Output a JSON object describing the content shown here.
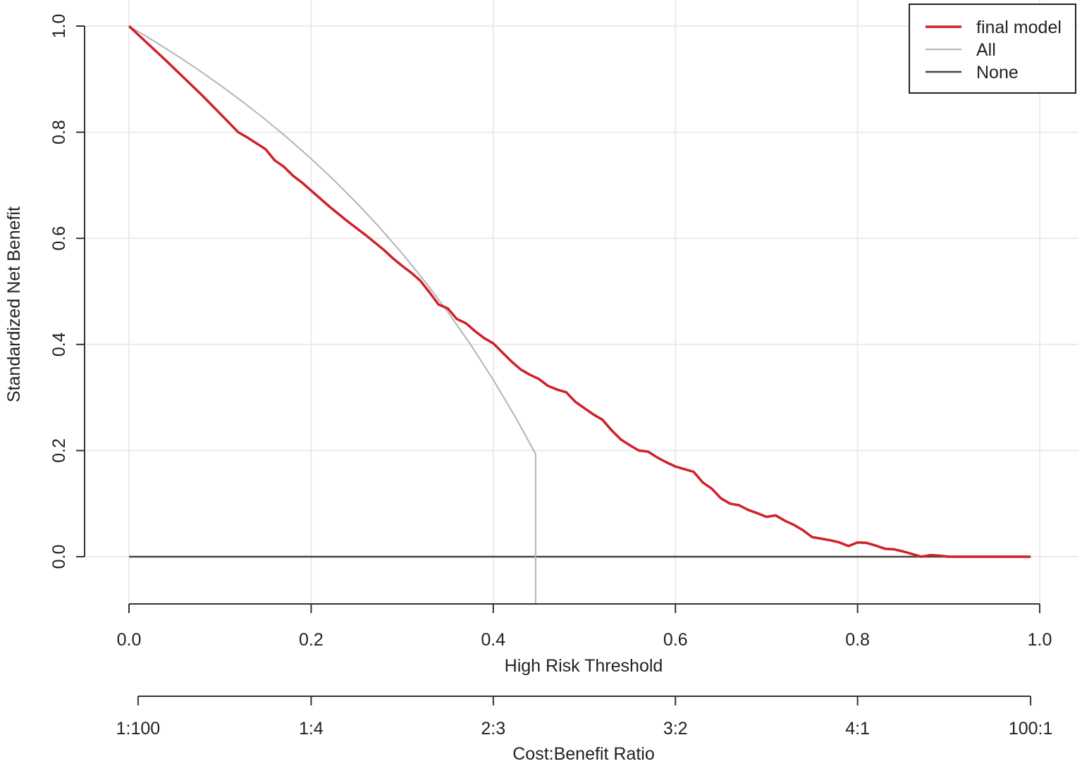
{
  "chart_data": {
    "type": "line",
    "title": "",
    "xlabel": "High Risk Threshold",
    "ylabel": "Standardized Net Benefit",
    "xlim": [
      0.0,
      1.0
    ],
    "ylim": [
      -0.09,
      1.0
    ],
    "grid": true,
    "legend_position": "top-right",
    "x_ticks": [
      "0.0",
      "0.2",
      "0.4",
      "0.6",
      "0.8",
      "1.0"
    ],
    "y_ticks": [
      "0.0",
      "0.2",
      "0.4",
      "0.6",
      "0.8",
      "1.0"
    ],
    "secondary_axis": {
      "label": "Cost:Benefit Ratio",
      "ticks": [
        {
          "x": 0.01,
          "label": "1:100"
        },
        {
          "x": 0.2,
          "label": "1:4"
        },
        {
          "x": 0.4,
          "label": "2:3"
        },
        {
          "x": 0.6,
          "label": "3:2"
        },
        {
          "x": 0.8,
          "label": "4:1"
        },
        {
          "x": 0.99,
          "label": "100:1"
        }
      ]
    },
    "series": [
      {
        "name": "final model",
        "color": "#d0202a",
        "x": [
          0.0,
          0.02,
          0.04,
          0.06,
          0.08,
          0.1,
          0.12,
          0.13,
          0.15,
          0.16,
          0.17,
          0.18,
          0.19,
          0.2,
          0.22,
          0.24,
          0.26,
          0.28,
          0.29,
          0.3,
          0.31,
          0.32,
          0.33,
          0.34,
          0.35,
          0.36,
          0.37,
          0.38,
          0.39,
          0.4,
          0.41,
          0.42,
          0.43,
          0.44,
          0.45,
          0.46,
          0.47,
          0.48,
          0.49,
          0.5,
          0.51,
          0.52,
          0.53,
          0.54,
          0.55,
          0.56,
          0.57,
          0.58,
          0.59,
          0.6,
          0.61,
          0.62,
          0.63,
          0.64,
          0.65,
          0.66,
          0.67,
          0.68,
          0.69,
          0.7,
          0.71,
          0.72,
          0.73,
          0.74,
          0.75,
          0.76,
          0.77,
          0.78,
          0.79,
          0.8,
          0.81,
          0.82,
          0.83,
          0.84,
          0.85,
          0.86,
          0.87,
          0.88,
          0.89,
          0.9,
          0.92,
          0.95,
          0.99
        ],
        "values": [
          1.0,
          0.968,
          0.936,
          0.903,
          0.87,
          0.835,
          0.8,
          0.79,
          0.768,
          0.747,
          0.735,
          0.718,
          0.705,
          0.69,
          0.66,
          0.632,
          0.606,
          0.578,
          0.562,
          0.548,
          0.535,
          0.52,
          0.498,
          0.475,
          0.468,
          0.448,
          0.44,
          0.425,
          0.412,
          0.402,
          0.385,
          0.368,
          0.353,
          0.343,
          0.335,
          0.322,
          0.315,
          0.31,
          0.292,
          0.28,
          0.268,
          0.258,
          0.238,
          0.221,
          0.21,
          0.2,
          0.198,
          0.187,
          0.178,
          0.17,
          0.165,
          0.16,
          0.14,
          0.128,
          0.11,
          0.1,
          0.097,
          0.088,
          0.082,
          0.075,
          0.078,
          0.068,
          0.06,
          0.05,
          0.037,
          0.034,
          0.031,
          0.027,
          0.02,
          0.027,
          0.026,
          0.021,
          0.015,
          0.014,
          0.01,
          0.005,
          0.0,
          0.003,
          0.002,
          0.0,
          0.0,
          0.0,
          0.0
        ]
      },
      {
        "name": "All",
        "color": "#b4b4b4",
        "x": [
          0.0,
          0.025,
          0.05,
          0.075,
          0.1,
          0.125,
          0.15,
          0.175,
          0.2,
          0.225,
          0.25,
          0.275,
          0.3,
          0.325,
          0.35,
          0.375,
          0.4,
          0.425,
          0.4465
        ],
        "values": [
          1.0,
          0.9744,
          0.9474,
          0.9189,
          0.8889,
          0.8571,
          0.8235,
          0.7879,
          0.75,
          0.7097,
          0.6667,
          0.6207,
          0.5714,
          0.5185,
          0.4615,
          0.4,
          0.3333,
          0.2609,
          0.1933
        ],
        "note_values_are_prevalence_scaled": false
      },
      {
        "name": "None",
        "color": "#444444",
        "x": [
          0.0,
          0.99
        ],
        "values": [
          0.0,
          0.0
        ]
      }
    ]
  }
}
